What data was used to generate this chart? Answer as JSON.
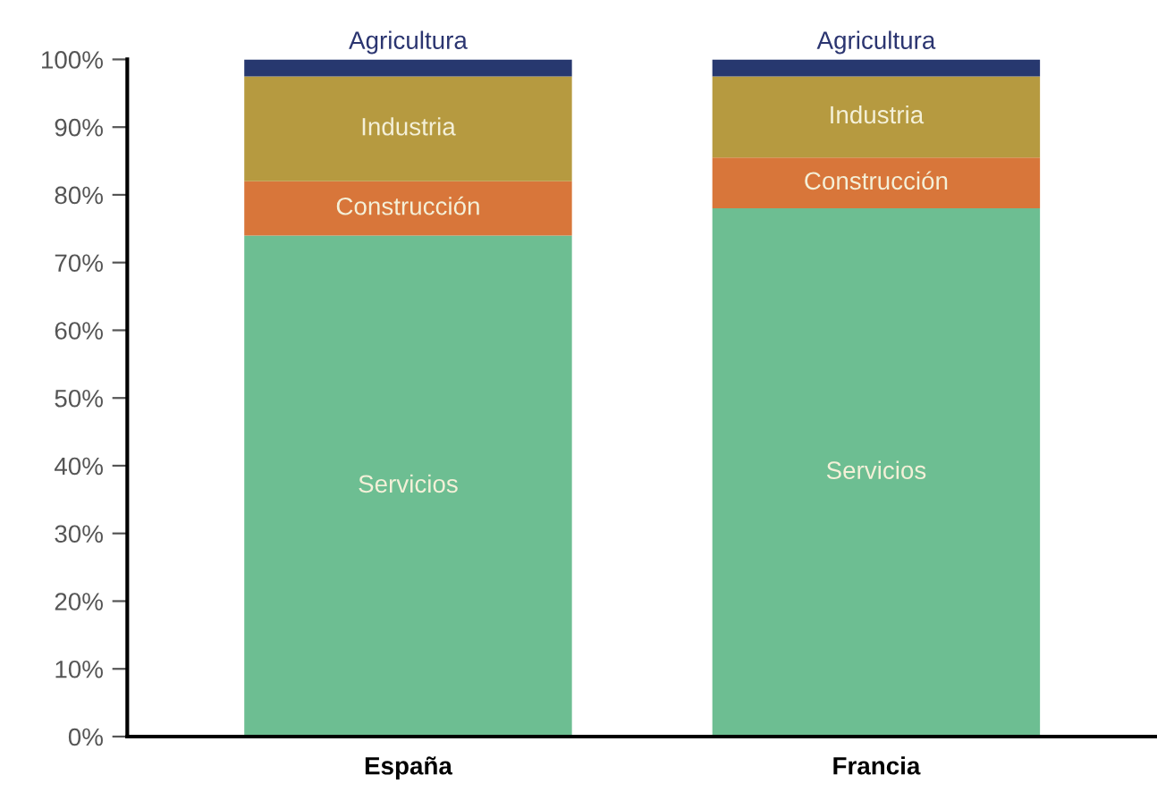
{
  "chart_data": {
    "type": "bar",
    "stacked": true,
    "categories": [
      "España",
      "Francia"
    ],
    "series": [
      {
        "name": "Servicios",
        "color": "#6dbe92",
        "values": [
          74,
          78
        ]
      },
      {
        "name": "Construcción",
        "color": "#d8763a",
        "values": [
          8,
          7.5
        ]
      },
      {
        "name": "Industria",
        "color": "#b69a40",
        "values": [
          15.5,
          12
        ]
      },
      {
        "name": "Agricultura",
        "color": "#27386f",
        "values": [
          2.5,
          2.5
        ]
      }
    ],
    "ylim": [
      0,
      100
    ],
    "yticks": [
      {
        "value": 0,
        "label": "0%"
      },
      {
        "value": 10,
        "label": "10%"
      },
      {
        "value": 20,
        "label": "20%"
      },
      {
        "value": 30,
        "label": "30%"
      },
      {
        "value": 40,
        "label": "40%"
      },
      {
        "value": 50,
        "label": "50%"
      },
      {
        "value": 60,
        "label": "60%"
      },
      {
        "value": 70,
        "label": "70%"
      },
      {
        "value": 80,
        "label": "80%"
      },
      {
        "value": 90,
        "label": "90%"
      },
      {
        "value": 100,
        "label": "100%"
      }
    ],
    "grid": false,
    "legend": false
  }
}
